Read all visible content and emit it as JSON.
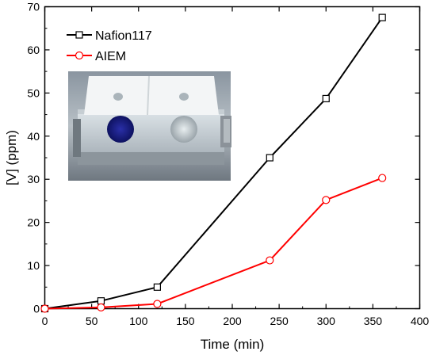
{
  "chart_data": {
    "type": "line",
    "xlabel": "Time (min)",
    "ylabel": "[V] (ppm)",
    "xlim": [
      0,
      400
    ],
    "ylim": [
      0,
      70
    ],
    "xticks": [
      0,
      50,
      100,
      150,
      200,
      250,
      300,
      350,
      400
    ],
    "yticks": [
      0,
      10,
      20,
      30,
      40,
      50,
      60,
      70
    ],
    "legend_position": "top-left",
    "grid": false,
    "series": [
      {
        "name": "Nafion117",
        "color": "#000000",
        "marker": "square",
        "x": [
          0,
          60,
          120,
          240,
          300,
          360
        ],
        "y": [
          0,
          1.8,
          5.0,
          35.0,
          48.7,
          67.5
        ]
      },
      {
        "name": "AIEM",
        "color": "#ff0000",
        "marker": "circle",
        "x": [
          0,
          60,
          120,
          240,
          300,
          360
        ],
        "y": [
          0,
          0.3,
          1.1,
          11.2,
          25.2,
          30.3
        ]
      }
    ],
    "inset": {
      "kind": "photo",
      "subject": "diffusion-cell-apparatus"
    }
  }
}
